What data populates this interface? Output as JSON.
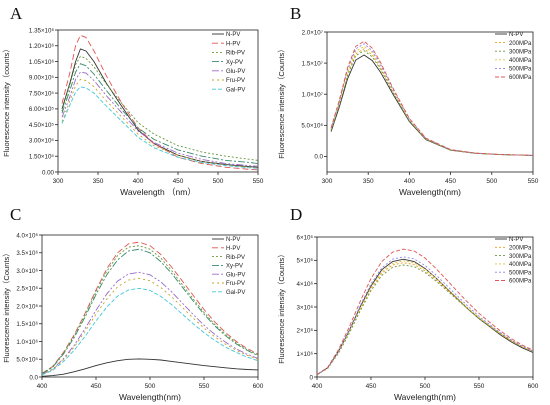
{
  "chart_data": [
    {
      "panel": "A",
      "type": "line",
      "xlabel": "Wavelength （nm）",
      "ylabel": "Fluorescence intensity（counts）",
      "xlim": [
        300,
        550
      ],
      "ylim": [
        0,
        1350000
      ],
      "xticks": [
        300,
        350,
        400,
        450,
        500,
        550
      ],
      "yticks": [
        0,
        150000,
        300000,
        450000,
        600000,
        750000,
        900000,
        1050000,
        1200000,
        1350000
      ],
      "ytick_labels": [
        "0.00",
        "1.50×10⁵",
        "3.00×10⁵",
        "4.50×10⁵",
        "6.00×10⁵",
        "7.50×10⁵",
        "9.00×10⁵",
        "1.05×10⁶",
        "1.20×10⁶",
        "1.35×10⁶"
      ],
      "legend_position": "top-right",
      "x": [
        305,
        315,
        322,
        328,
        335,
        345,
        360,
        380,
        400,
        420,
        450,
        480,
        510,
        540,
        550
      ],
      "series": [
        {
          "name": "N-PV",
          "color": "#333333",
          "dash": "",
          "values": [
            600000,
            850000,
            1050000,
            1170000,
            1150000,
            1050000,
            850000,
            620000,
            400000,
            270000,
            160000,
            100000,
            70000,
            50000,
            45000
          ]
        },
        {
          "name": "H-PV",
          "color": "#e05555",
          "dash": "6 3",
          "values": [
            650000,
            950000,
            1200000,
            1300000,
            1280000,
            1150000,
            920000,
            650000,
            420000,
            270000,
            140000,
            80000,
            45000,
            25000,
            20000
          ]
        },
        {
          "name": "Rib-PV",
          "color": "#6a9a3c",
          "dash": "2 2",
          "values": [
            580000,
            830000,
            1020000,
            1100000,
            1080000,
            1000000,
            840000,
            650000,
            470000,
            360000,
            250000,
            190000,
            150000,
            120000,
            110000
          ]
        },
        {
          "name": "Xy-PV",
          "color": "#3a8a6a",
          "dash": "7 2 2 2",
          "values": [
            560000,
            780000,
            950000,
            1030000,
            1010000,
            930000,
            780000,
            590000,
            420000,
            310000,
            210000,
            150000,
            110000,
            90000,
            80000
          ]
        },
        {
          "name": "Glu-PV",
          "color": "#9a6ac8",
          "dash": "7 2 2 2 2 2",
          "values": [
            520000,
            720000,
            880000,
            950000,
            940000,
            870000,
            730000,
            560000,
            390000,
            280000,
            180000,
            120000,
            80000,
            60000,
            55000
          ]
        },
        {
          "name": "Fru-PV",
          "color": "#c8a020",
          "dash": "2 3",
          "values": [
            480000,
            680000,
            820000,
            880000,
            870000,
            810000,
            680000,
            520000,
            360000,
            250000,
            160000,
            100000,
            65000,
            45000,
            40000
          ]
        },
        {
          "name": "Gal-PV",
          "color": "#40c8d8",
          "dash": "4 2",
          "values": [
            460000,
            640000,
            760000,
            810000,
            800000,
            750000,
            630000,
            480000,
            330000,
            230000,
            140000,
            90000,
            60000,
            40000,
            35000
          ]
        }
      ]
    },
    {
      "panel": "B",
      "type": "line",
      "xlabel": "Wavelength(nm)",
      "ylabel": "Fluorescence intensity（Counts）",
      "xlim": [
        300,
        550
      ],
      "ylim": [
        -2500000,
        20000000
      ],
      "xticks": [
        300,
        350,
        400,
        450,
        500,
        550
      ],
      "yticks": [
        0,
        5000000,
        10000000,
        15000000,
        20000000
      ],
      "ytick_labels": [
        "0.0",
        "5.0×10⁶",
        "1.0×10⁷",
        "1.5×10⁷",
        "2.0×10⁷"
      ],
      "legend_position": "top-right",
      "x": [
        305,
        315,
        325,
        335,
        345,
        355,
        365,
        380,
        400,
        420,
        450,
        480,
        510,
        540,
        550
      ],
      "series": [
        {
          "name": "N-PV",
          "color": "#333333",
          "dash": "",
          "values": [
            4000000,
            8000000,
            12500000,
            15500000,
            16300000,
            15400000,
            13500000,
            10000000,
            5600000,
            2700000,
            1000000,
            500000,
            300000,
            200000,
            150000
          ]
        },
        {
          "name": "200MPa",
          "color": "#e8a020",
          "dash": "2 2",
          "values": [
            4300000,
            8500000,
            13300000,
            16500000,
            17300000,
            16300000,
            14200000,
            10400000,
            5800000,
            2800000,
            1050000,
            520000,
            310000,
            210000,
            160000
          ]
        },
        {
          "name": "300MPa",
          "color": "#6a9a3c",
          "dash": "2 2",
          "values": [
            4200000,
            8300000,
            13000000,
            16200000,
            17000000,
            16000000,
            14000000,
            10300000,
            5700000,
            2750000,
            1000000,
            510000,
            300000,
            200000,
            150000
          ]
        },
        {
          "name": "400MPa",
          "color": "#e0c040",
          "dash": "2 2",
          "values": [
            4400000,
            8700000,
            13600000,
            16900000,
            17700000,
            16700000,
            14500000,
            10600000,
            5900000,
            2850000,
            1050000,
            520000,
            310000,
            210000,
            160000
          ]
        },
        {
          "name": "500MPa",
          "color": "#8888ee",
          "dash": "2 2",
          "values": [
            4500000,
            8900000,
            14000000,
            17300000,
            18100000,
            17000000,
            14800000,
            10800000,
            6000000,
            2900000,
            1080000,
            530000,
            320000,
            210000,
            160000
          ]
        },
        {
          "name": "600MPa",
          "color": "#e05555",
          "dash": "4 2",
          "values": [
            4600000,
            9100000,
            14300000,
            17700000,
            18500000,
            17400000,
            15100000,
            11000000,
            6100000,
            2950000,
            1100000,
            540000,
            320000,
            210000,
            160000
          ]
        }
      ]
    },
    {
      "panel": "C",
      "type": "line",
      "xlabel": "Wavelength(nm)",
      "ylabel": "Fluorescence intensity（Counts）",
      "xlim": [
        400,
        600
      ],
      "ylim": [
        0,
        4000000
      ],
      "xticks": [
        400,
        450,
        500,
        550,
        600
      ],
      "yticks": [
        0,
        500000,
        1000000,
        1500000,
        2000000,
        2500000,
        3000000,
        3500000,
        4000000
      ],
      "ytick_labels": [
        "0.0",
        "5.0×10⁵",
        "1.0×10⁶",
        "1.5×10⁶",
        "2.0×10⁶",
        "2.5×10⁶",
        "3.0×10⁶",
        "3.5×10⁶",
        "4.0×10⁶"
      ],
      "legend_position": "top-right",
      "x": [
        400,
        410,
        420,
        430,
        440,
        450,
        460,
        470,
        480,
        490,
        500,
        510,
        520,
        530,
        540,
        550,
        560,
        570,
        580,
        590,
        600
      ],
      "series": [
        {
          "name": "N-PV",
          "color": "#333333",
          "dash": "",
          "values": [
            20000,
            40000,
            80000,
            150000,
            230000,
            320000,
            400000,
            460000,
            500000,
            510000,
            500000,
            480000,
            440000,
            400000,
            360000,
            320000,
            290000,
            260000,
            230000,
            210000,
            200000
          ]
        },
        {
          "name": "H-PV",
          "color": "#e05555",
          "dash": "6 3",
          "values": [
            100000,
            300000,
            700000,
            1200000,
            1800000,
            2450000,
            3050000,
            3500000,
            3750000,
            3800000,
            3700000,
            3450000,
            3100000,
            2700000,
            2300000,
            1900000,
            1550000,
            1250000,
            1000000,
            800000,
            650000
          ]
        },
        {
          "name": "Rib-PV",
          "color": "#6a9a3c",
          "dash": "2 2",
          "values": [
            100000,
            290000,
            680000,
            1170000,
            1760000,
            2400000,
            2980000,
            3420000,
            3660000,
            3700000,
            3600000,
            3350000,
            3000000,
            2600000,
            2200000,
            1820000,
            1480000,
            1200000,
            960000,
            770000,
            620000
          ]
        },
        {
          "name": "Xy-PV",
          "color": "#3a8a6a",
          "dash": "7 2 2 2",
          "values": [
            90000,
            280000,
            650000,
            1120000,
            1700000,
            2320000,
            2880000,
            3300000,
            3550000,
            3600000,
            3500000,
            3250000,
            2920000,
            2530000,
            2140000,
            1770000,
            1440000,
            1160000,
            930000,
            750000,
            600000
          ]
        },
        {
          "name": "Glu-PV",
          "color": "#9a6ac8",
          "dash": "7 2 2 2 2 2",
          "values": [
            80000,
            220000,
            520000,
            900000,
            1370000,
            1880000,
            2340000,
            2700000,
            2900000,
            2950000,
            2880000,
            2680000,
            2400000,
            2080000,
            1760000,
            1460000,
            1200000,
            980000,
            790000,
            640000,
            520000
          ]
        },
        {
          "name": "Fru-PV",
          "color": "#c8a020",
          "dash": "2 3",
          "values": [
            70000,
            210000,
            490000,
            850000,
            1290000,
            1770000,
            2200000,
            2540000,
            2730000,
            2780000,
            2710000,
            2520000,
            2260000,
            1960000,
            1660000,
            1380000,
            1130000,
            920000,
            750000,
            610000,
            500000
          ]
        },
        {
          "name": "Gal-PV",
          "color": "#40c8d8",
          "dash": "4 2",
          "values": [
            60000,
            190000,
            440000,
            760000,
            1150000,
            1580000,
            1970000,
            2280000,
            2450000,
            2500000,
            2440000,
            2270000,
            2040000,
            1770000,
            1500000,
            1250000,
            1030000,
            840000,
            690000,
            560000,
            460000
          ]
        }
      ]
    },
    {
      "panel": "D",
      "type": "line",
      "xlabel": "Wavelength(nm)",
      "ylabel": "Fluorescence intensity（Counts）",
      "xlim": [
        400,
        600
      ],
      "ylim": [
        0,
        6000000
      ],
      "xticks": [
        400,
        450,
        500,
        550,
        600
      ],
      "yticks": [
        0,
        1000000,
        2000000,
        3000000,
        4000000,
        5000000,
        6000000
      ],
      "ytick_labels": [
        "0",
        "1×10⁶",
        "2×10⁶",
        "3×10⁶",
        "4×10⁶",
        "5×10⁶",
        "6×10⁶"
      ],
      "legend_position": "top-right",
      "x": [
        400,
        410,
        420,
        430,
        440,
        450,
        460,
        470,
        480,
        490,
        500,
        510,
        520,
        530,
        540,
        550,
        560,
        570,
        580,
        590,
        600
      ],
      "series": [
        {
          "name": "N-PV",
          "color": "#333333",
          "dash": "",
          "values": [
            100000,
            400000,
            1100000,
            2000000,
            3000000,
            3900000,
            4600000,
            4950000,
            5050000,
            4950000,
            4650000,
            4250000,
            3800000,
            3350000,
            2900000,
            2500000,
            2150000,
            1800000,
            1500000,
            1250000,
            1050000
          ]
        },
        {
          "name": "200MPa",
          "color": "#e8a020",
          "dash": "2 2",
          "values": [
            100000,
            380000,
            1050000,
            1930000,
            2900000,
            3780000,
            4450000,
            4800000,
            4900000,
            4820000,
            4550000,
            4180000,
            3760000,
            3330000,
            2900000,
            2510000,
            2170000,
            1830000,
            1540000,
            1290000,
            1100000
          ]
        },
        {
          "name": "300MPa",
          "color": "#6a9a3c",
          "dash": "2 2",
          "values": [
            100000,
            370000,
            1020000,
            1880000,
            2830000,
            3700000,
            4350000,
            4700000,
            4800000,
            4730000,
            4480000,
            4120000,
            3720000,
            3310000,
            2900000,
            2520000,
            2180000,
            1850000,
            1560000,
            1310000,
            1120000
          ]
        },
        {
          "name": "400MPa",
          "color": "#e0c040",
          "dash": "2 2",
          "values": [
            100000,
            390000,
            1080000,
            1970000,
            2950000,
            3850000,
            4520000,
            4870000,
            4980000,
            4900000,
            4630000,
            4250000,
            3820000,
            3380000,
            2950000,
            2550000,
            2200000,
            1860000,
            1560000,
            1300000,
            1100000
          ]
        },
        {
          "name": "500MPa",
          "color": "#8888ee",
          "dash": "2 2",
          "values": [
            100000,
            400000,
            1120000,
            2040000,
            3060000,
            3990000,
            4680000,
            5050000,
            5150000,
            5060000,
            4780000,
            4380000,
            3930000,
            3470000,
            3020000,
            2600000,
            2240000,
            1890000,
            1580000,
            1320000,
            1110000
          ]
        },
        {
          "name": "600MPa",
          "color": "#e05555",
          "dash": "4 2",
          "values": [
            100000,
            420000,
            1180000,
            2160000,
            3240000,
            4220000,
            4950000,
            5350000,
            5480000,
            5400000,
            5100000,
            4660000,
            4170000,
            3670000,
            3180000,
            2730000,
            2340000,
            1970000,
            1640000,
            1370000,
            1150000
          ]
        }
      ]
    }
  ]
}
